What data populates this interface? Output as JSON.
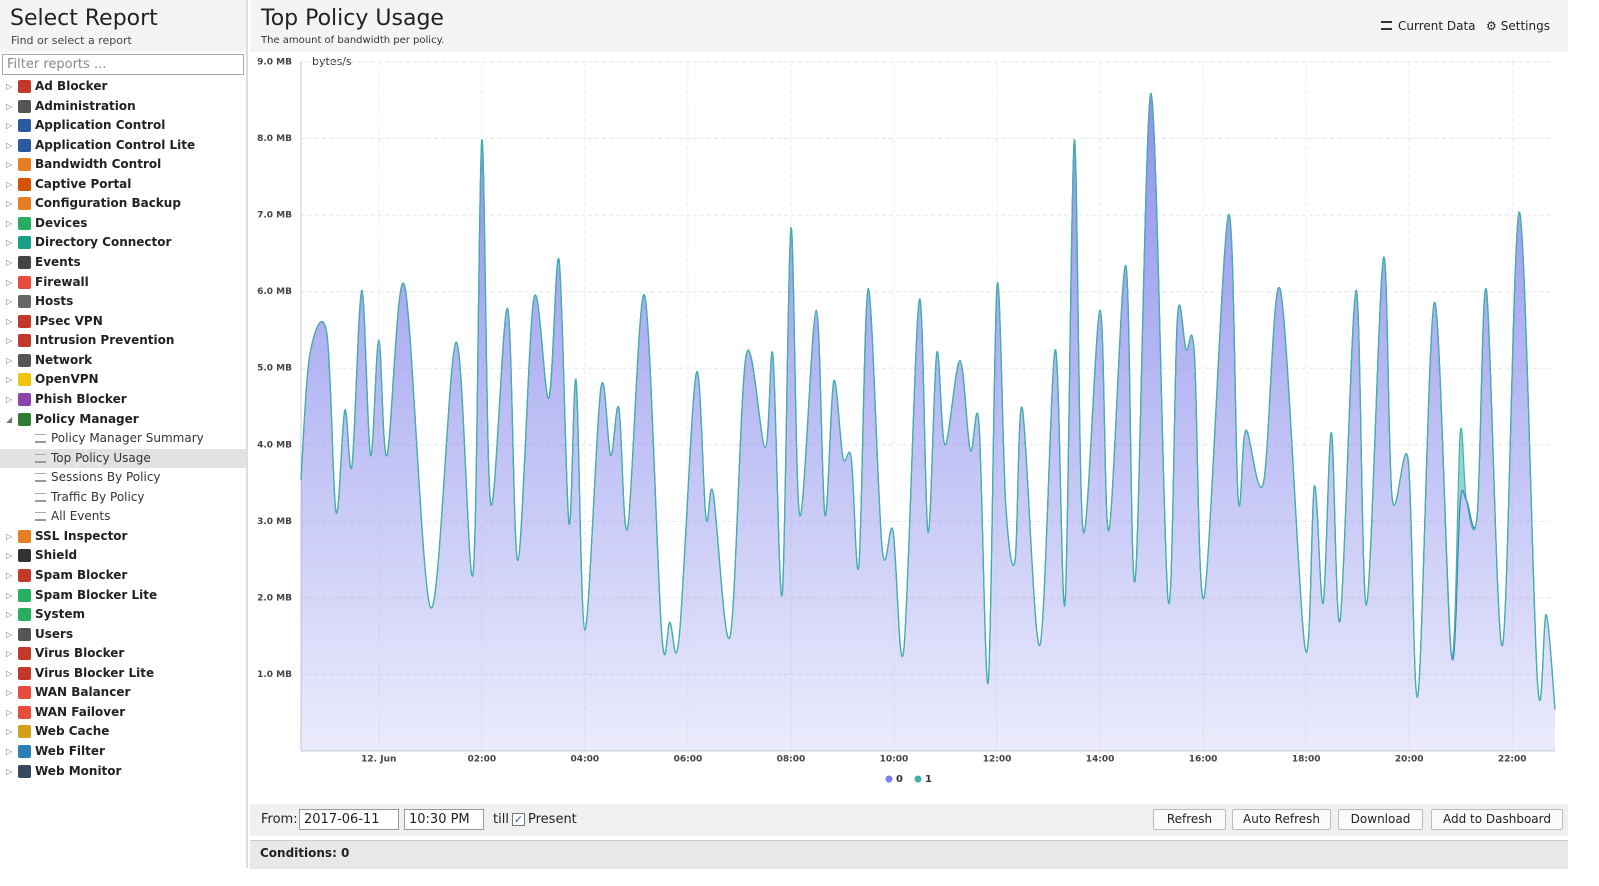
{
  "sidebar": {
    "title": "Select Report",
    "subtitle": "Find or select a report",
    "filter_placeholder": "Filter reports ...",
    "items": [
      "Ad Blocker",
      "Administration",
      "Application Control",
      "Application Control Lite",
      "Bandwidth Control",
      "Captive Portal",
      "Configuration Backup",
      "Devices",
      "Directory Connector",
      "Events",
      "Firewall",
      "Hosts",
      "IPsec VPN",
      "Intrusion Prevention",
      "Network",
      "OpenVPN",
      "Phish Blocker",
      {
        "label": "Policy Manager",
        "children": [
          "Policy Manager Summary",
          "Top Policy Usage",
          "Sessions By Policy",
          "Traffic By Policy",
          "All Events"
        ],
        "selected": 1
      },
      "SSL Inspector",
      "Shield",
      "Spam Blocker",
      "Spam Blocker Lite",
      "System",
      "Users",
      "Virus Blocker",
      "Virus Blocker Lite",
      "WAN Balancer",
      "WAN Failover",
      "Web Cache",
      "Web Filter",
      "Web Monitor"
    ]
  },
  "header": {
    "title": "Top Policy Usage",
    "subtitle": "The amount of bandwidth per policy.",
    "buttons": [
      "Current Data",
      "Settings"
    ]
  },
  "chart_data": {
    "type": "area",
    "stacked": true,
    "y_axis_label": "bytes/s",
    "grid": true,
    "x": [
      -1.51,
      -1.34,
      -1.01,
      -0.83,
      -0.66,
      -0.52,
      -0.33,
      -0.16,
      0,
      0.16,
      0.5,
      1.01,
      1.5,
      1.83,
      2,
      2.17,
      2.5,
      2.7,
      3.01,
      3.3,
      3.5,
      3.69,
      3.83,
      4,
      4.31,
      4.5,
      4.66,
      4.83,
      5.16,
      5.49,
      5.65,
      5.83,
      6.16,
      6.35,
      6.49,
      6.82,
      7.13,
      7.5,
      7.65,
      7.83,
      8,
      8.17,
      8.49,
      8.66,
      8.83,
      9.01,
      9.17,
      9.32,
      9.5,
      9.77,
      9.98,
      10.19,
      10.49,
      10.66,
      10.83,
      10.99,
      11.28,
      11.48,
      11.65,
      11.83,
      12,
      12.17,
      12.35,
      12.49,
      12.83,
      13.13,
      13.32,
      13.5,
      13.67,
      14,
      14.17,
      14.5,
      14.68,
      14.99,
      15.32,
      15.5,
      15.67,
      15.83,
      16.02,
      16.49,
      16.68,
      16.83,
      17.17,
      17.5,
      17.98,
      18.16,
      18.33,
      18.49,
      18.66,
      18.97,
      19.17,
      19.5,
      19.67,
      19.98,
      20.17,
      20.49,
      20.82,
      20.99,
      21.11,
      21.32,
      21.5,
      21.81,
      22.14,
      22.49,
      22.66,
      22.83
    ],
    "series": [
      {
        "name": "0",
        "color": "#7b7eea",
        "values": [
          3.54,
          5.17,
          5.46,
          3.12,
          4.45,
          3.73,
          6.02,
          3.86,
          5.37,
          3.86,
          6.08,
          1.87,
          5.34,
          2.32,
          7.98,
          3.24,
          5.78,
          2.49,
          5.91,
          4.61,
          6.41,
          2.98,
          4.84,
          1.58,
          4.74,
          3.86,
          4.48,
          2.91,
          5.95,
          1.54,
          1.68,
          1.48,
          4.93,
          3.05,
          3.37,
          1.5,
          5.17,
          3.96,
          5.17,
          2.04,
          6.83,
          3.08,
          5.76,
          3.08,
          4.83,
          3.83,
          3.83,
          2.43,
          6.04,
          2.65,
          2.88,
          1.32,
          5.89,
          2.86,
          5.2,
          4,
          5.1,
          3.93,
          4.27,
          0.9,
          6.08,
          3.21,
          2.49,
          4.48,
          1.38,
          5.24,
          1.93,
          7.98,
          2.88,
          5.76,
          2.88,
          6.34,
          2.23,
          8.59,
          1.97,
          5.65,
          5.24,
          5.2,
          2.01,
          7,
          3.3,
          4.19,
          3.5,
          6.02,
          1.34,
          3.46,
          1.93,
          4.16,
          1.71,
          6.02,
          1.91,
          6.44,
          3.3,
          3.8,
          0.73,
          5.86,
          1.25,
          3.24,
          3.28,
          3.08,
          6.02,
          1.38,
          7.04,
          0.9,
          1.78,
          0.54
        ]
      },
      {
        "name": "1",
        "color": "#3fb3a8",
        "values": [
          0,
          0,
          0,
          0,
          0,
          0,
          0,
          0,
          0,
          0,
          0,
          0,
          0,
          0,
          0,
          0,
          0,
          0,
          0,
          0,
          0,
          0,
          0,
          0,
          0,
          0,
          0,
          0,
          0,
          0,
          0,
          0,
          0,
          0,
          0,
          0,
          0,
          0,
          0,
          0,
          0,
          0,
          0,
          0,
          0,
          0,
          0,
          0,
          0,
          0,
          0,
          0,
          0,
          0,
          0,
          0,
          0,
          0,
          0,
          0,
          0,
          0,
          0,
          0,
          0,
          0,
          0,
          0,
          0,
          0,
          0,
          0,
          0,
          0,
          0,
          0,
          0,
          0,
          0,
          0,
          0,
          0,
          0,
          0,
          0,
          0,
          0,
          0,
          0,
          0,
          0,
          0,
          0,
          0,
          0,
          0,
          0,
          0.91,
          0,
          0,
          0,
          0,
          0,
          0,
          0,
          0
        ]
      }
    ],
    "xlim": [
      -1.51,
      22.83
    ],
    "xticks": [
      {
        "value": 0,
        "label": "12. Jun"
      },
      {
        "value": 2,
        "label": "02:00"
      },
      {
        "value": 4,
        "label": "04:00"
      },
      {
        "value": 6,
        "label": "06:00"
      },
      {
        "value": 8,
        "label": "08:00"
      },
      {
        "value": 10,
        "label": "10:00"
      },
      {
        "value": 12,
        "label": "12:00"
      },
      {
        "value": 14,
        "label": "14:00"
      },
      {
        "value": 16,
        "label": "16:00"
      },
      {
        "value": 18,
        "label": "18:00"
      },
      {
        "value": 20,
        "label": "20:00"
      },
      {
        "value": 22,
        "label": "22:00"
      }
    ],
    "ylim": [
      0,
      9
    ],
    "yticks": [
      {
        "value": 1,
        "label": "1.0 MB"
      },
      {
        "value": 2,
        "label": "2.0 MB"
      },
      {
        "value": 3,
        "label": "3.0 MB"
      },
      {
        "value": 4,
        "label": "4.0 MB"
      },
      {
        "value": 5,
        "label": "5.0 MB"
      },
      {
        "value": 6,
        "label": "6.0 MB"
      },
      {
        "value": 7,
        "label": "7.0 MB"
      },
      {
        "value": 8,
        "label": "8.0 MB"
      },
      {
        "value": 9,
        "label": "9.0 MB"
      }
    ]
  },
  "toolbar": {
    "from_label": "From:",
    "date": "2017-06-11",
    "time": "10:30 PM",
    "till_label": "till",
    "present": "Present",
    "present_checked": true,
    "buttons": [
      "Refresh",
      "Auto Refresh",
      "Download",
      "Add to Dashboard"
    ]
  },
  "conditions": "Conditions: 0"
}
